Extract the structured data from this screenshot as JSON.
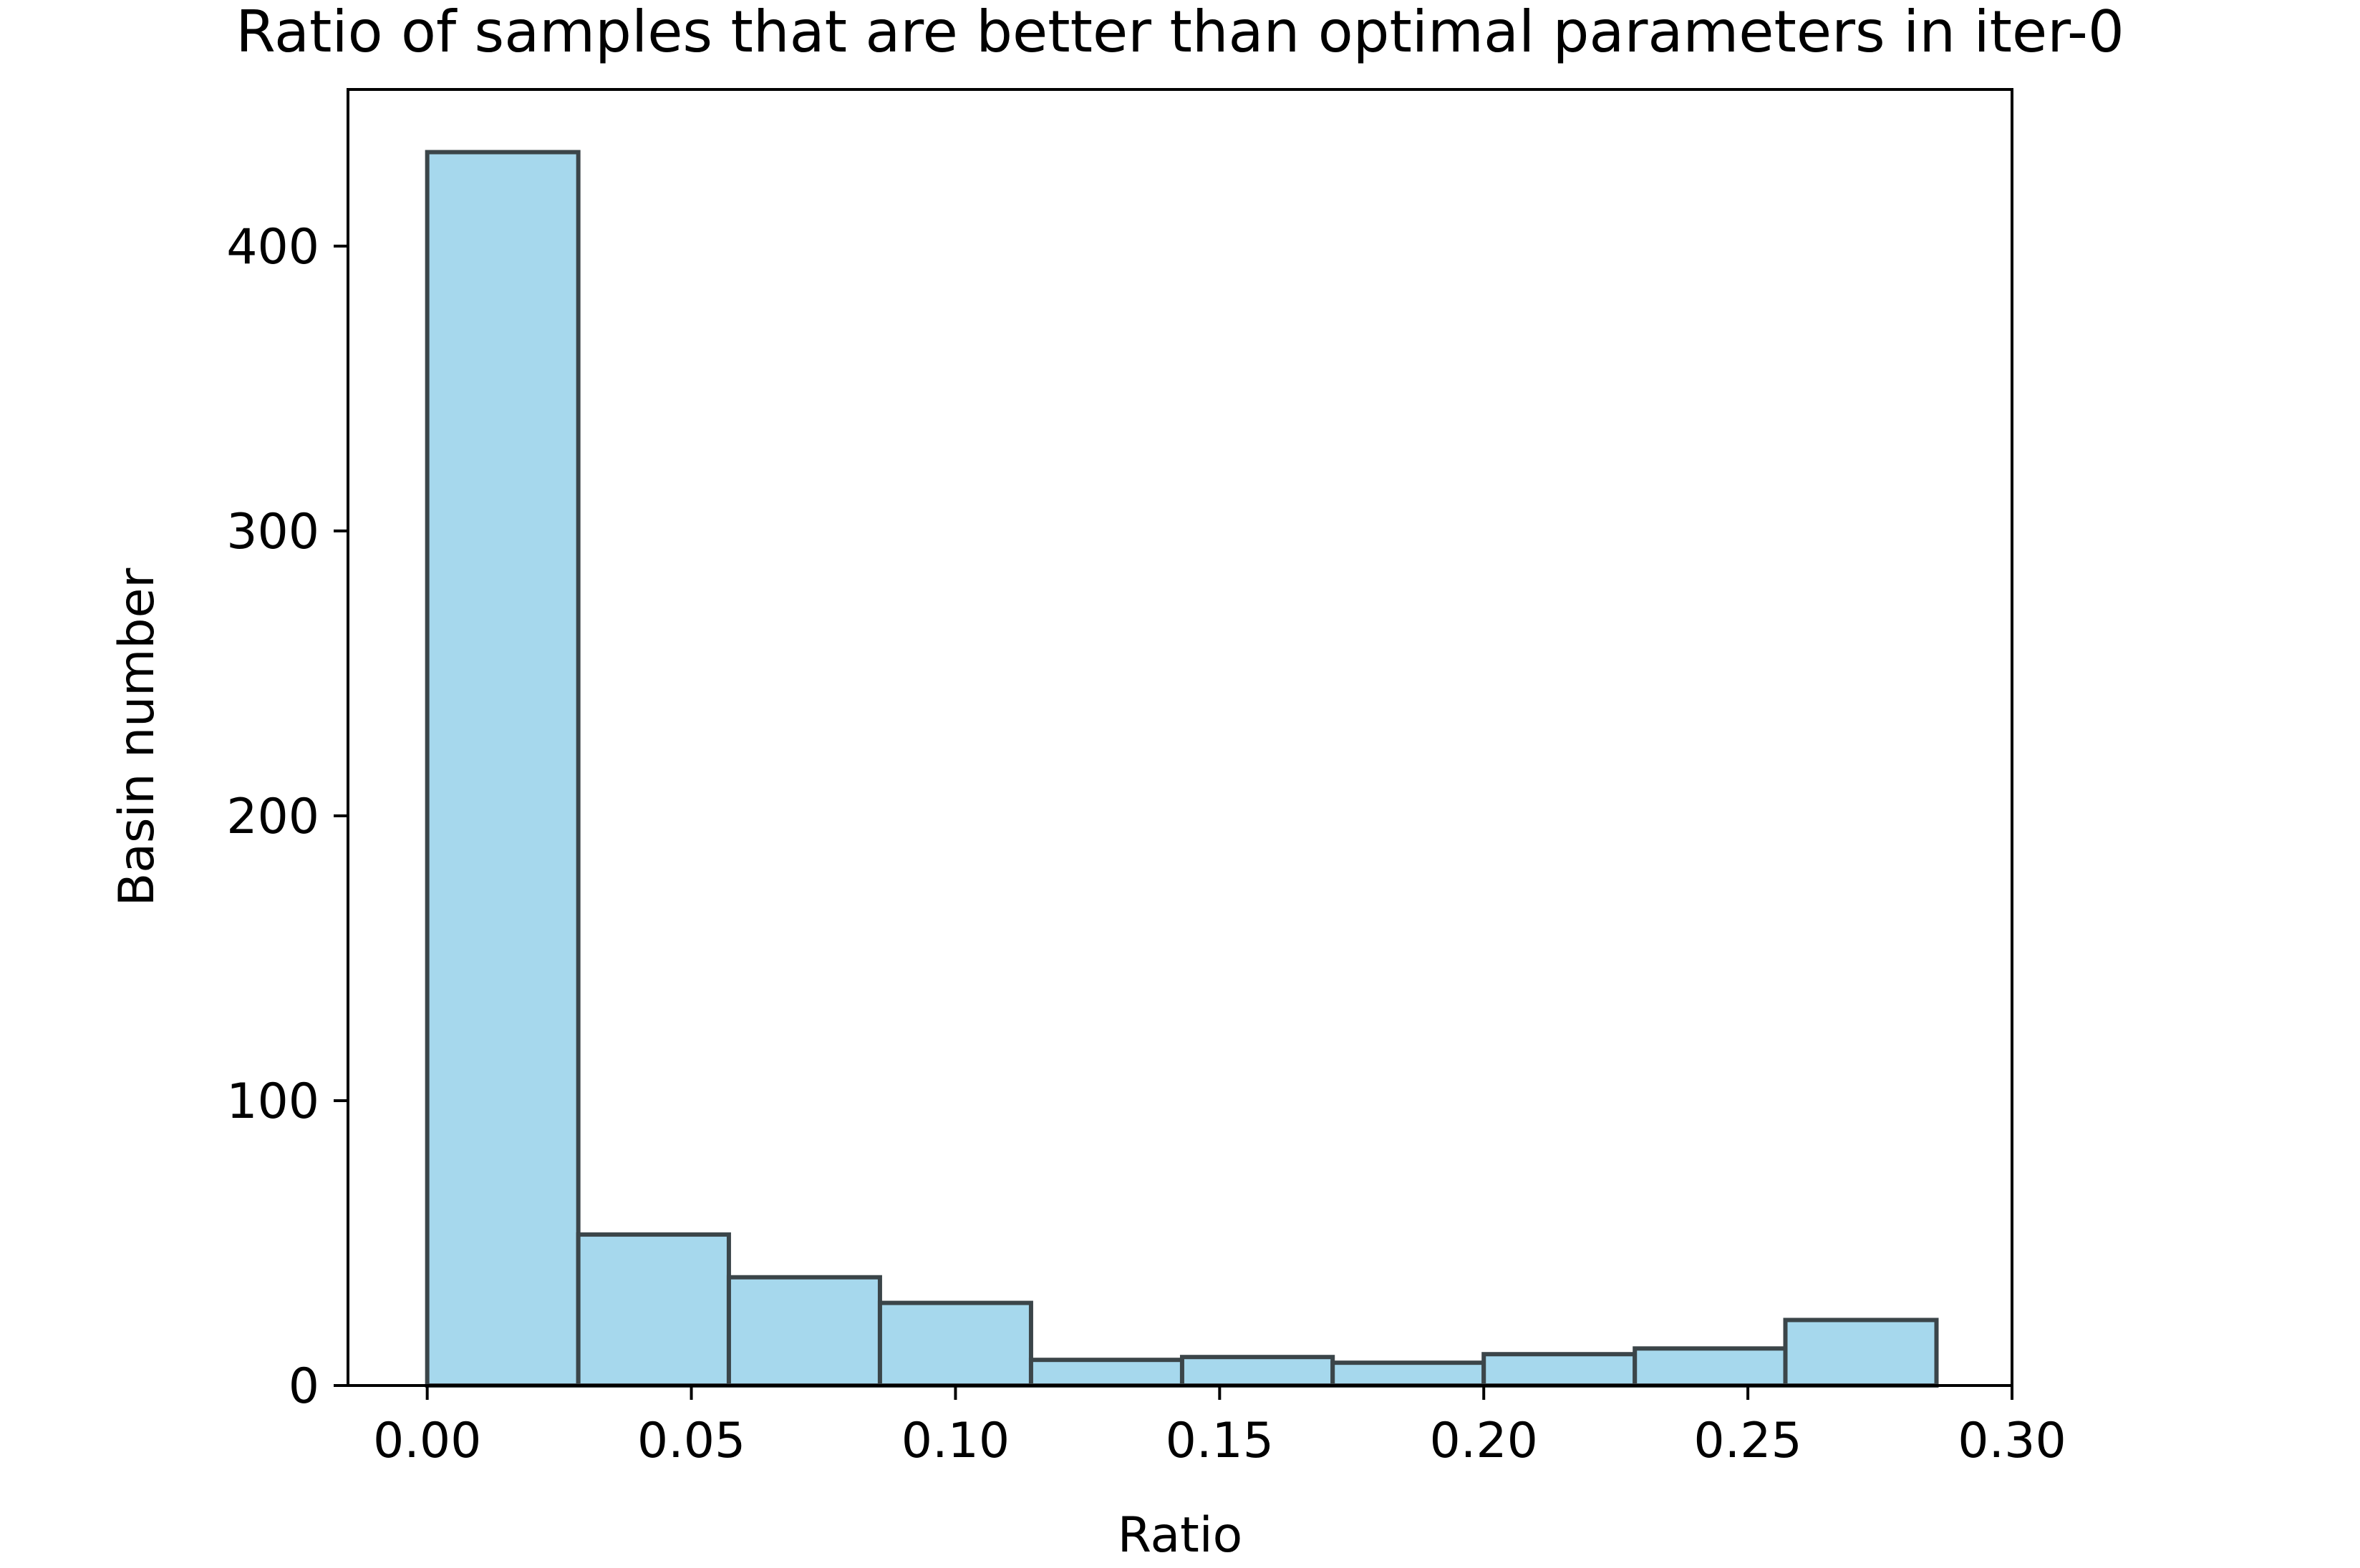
{
  "chart_data": {
    "type": "bar",
    "title": "Ratio of samples that are better than optimal parameters in iter-0",
    "xlabel": "Ratio",
    "ylabel": "Basin number",
    "xlim": [
      -0.015,
      0.3
    ],
    "ylim": [
      0,
      455
    ],
    "x_ticks": [
      0.0,
      0.05,
      0.1,
      0.15,
      0.2,
      0.25,
      0.3
    ],
    "x_tick_labels": [
      "0.00",
      "0.05",
      "0.10",
      "0.15",
      "0.20",
      "0.25",
      "0.30"
    ],
    "y_ticks": [
      0,
      100,
      200,
      300,
      400
    ],
    "y_tick_labels": [
      "0",
      "100",
      "200",
      "300",
      "400"
    ],
    "bin_edges": [
      0.0,
      0.0286,
      0.0571,
      0.0857,
      0.1143,
      0.1429,
      0.1714,
      0.2,
      0.2286,
      0.2571,
      0.2857
    ],
    "values": [
      433,
      53,
      38,
      29,
      9,
      10,
      8,
      11,
      13,
      23
    ],
    "grid": false,
    "colors": {
      "bar_fill": "#a6d8ed",
      "bar_edge": "#3b4549",
      "axis": "#000000"
    }
  }
}
